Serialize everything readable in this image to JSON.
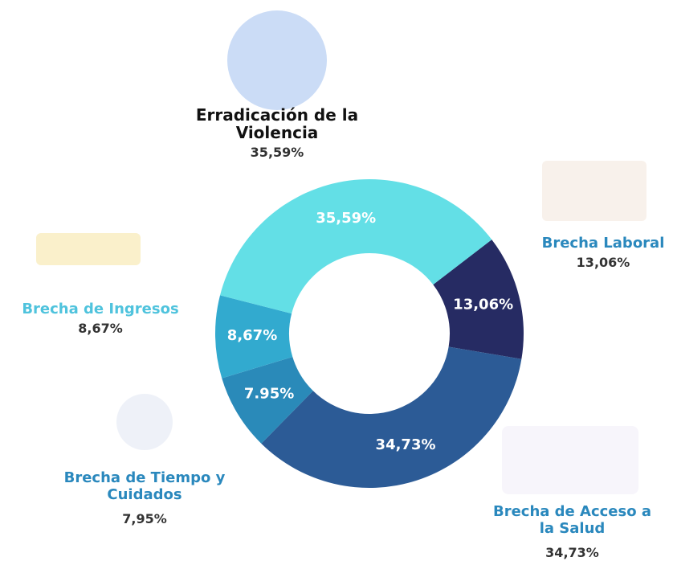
{
  "chart_data": {
    "type": "donut",
    "categories": [
      "Brecha Laboral",
      "Brecha de Acceso a la Salud",
      "Brecha de Tiempo y Cuidados",
      "Brecha de Ingresos",
      "Erradicación de la Violencia"
    ],
    "values": [
      13.06,
      34.73,
      7.95,
      8.67,
      35.59
    ],
    "value_labels": [
      "13,06%",
      "34,73%",
      "7.95%",
      "8,67%",
      "35,59%"
    ],
    "callout_labels": [
      "13,06%",
      "34,73%",
      "7,95%",
      "8,67%",
      "35,59%"
    ],
    "colors": [
      "#262b63",
      "#2c5b96",
      "#2a8ab9",
      "#32aacf",
      "#63dfe6"
    ]
  }
}
